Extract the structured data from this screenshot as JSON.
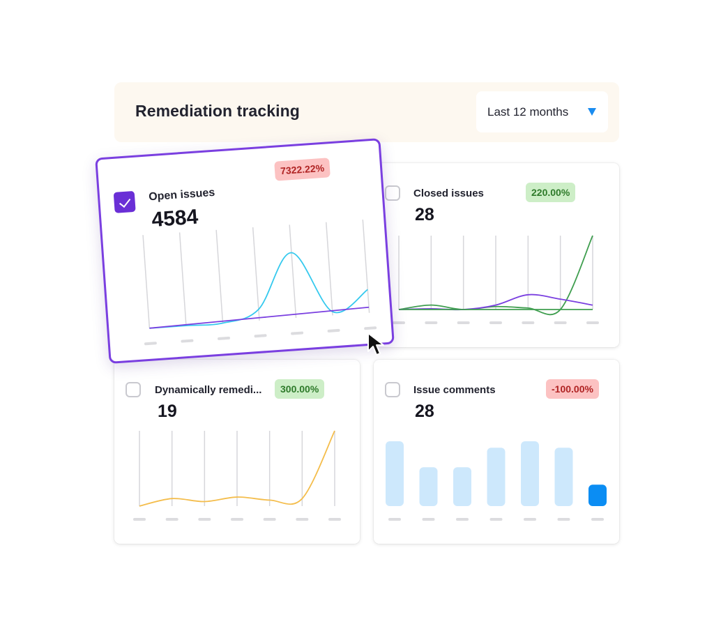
{
  "header": {
    "title": "Remediation tracking"
  },
  "range_select": {
    "label": "Last 12 months"
  },
  "colors": {
    "accent_purple": "#7a3fe0",
    "cyan_line": "#35c9ee",
    "green_line": "#3f9e4f",
    "yellow_line": "#f4bd4c",
    "bar_light": "#cde8fc",
    "bar_active": "#0b8df3",
    "badge_red_bg": "#fcc2c2",
    "badge_green_bg": "#cdeec7"
  },
  "cards": {
    "open_issues": {
      "title": "Open issues",
      "value": "4584",
      "badge": "7322.22%",
      "checked": true
    },
    "closed_issues": {
      "title": "Closed issues",
      "value": "28",
      "badge": "220.00%",
      "checked": false
    },
    "dynamically_remediated": {
      "title": "Dynamically remedi...",
      "value": "19",
      "badge": "300.00%",
      "checked": false
    },
    "issue_comments": {
      "title": "Issue comments",
      "value": "28",
      "badge": "-100.00%",
      "checked": false
    }
  },
  "chart_data": [
    {
      "type": "line",
      "x": [
        0,
        1,
        2,
        3,
        4,
        5,
        6
      ],
      "series": [
        {
          "values": [
            0,
            0,
            0,
            12,
            70,
            4,
            25
          ],
          "color": "#35c9ee"
        },
        {
          "values": [
            0,
            1,
            2,
            3,
            4,
            5,
            6
          ],
          "color": "#7a3fe0"
        }
      ],
      "ylim": [
        0,
        100
      ],
      "grid": true
    },
    {
      "type": "line",
      "x": [
        0,
        1,
        2,
        3,
        4,
        5,
        6
      ],
      "series": [
        {
          "values": [
            0,
            6,
            0,
            4,
            2,
            0,
            100
          ],
          "color": "#3f9e4f"
        },
        {
          "values": [
            0,
            1,
            0,
            6,
            20,
            14,
            6
          ],
          "color": "#7a3fe0"
        },
        {
          "values": [
            0,
            0,
            0,
            0,
            0,
            0,
            0
          ],
          "color": "#3f9e4f"
        }
      ],
      "ylim": [
        0,
        100
      ],
      "grid": true
    },
    {
      "type": "line",
      "x": [
        0,
        1,
        2,
        3,
        4,
        5,
        6
      ],
      "series": [
        {
          "values": [
            0,
            10,
            6,
            12,
            8,
            10,
            100
          ],
          "color": "#f4bd4c"
        }
      ],
      "ylim": [
        0,
        100
      ],
      "grid": true
    },
    {
      "type": "bar",
      "categories": [
        "1",
        "2",
        "3",
        "4",
        "5",
        "6",
        "7"
      ],
      "values": [
        100,
        60,
        60,
        90,
        100,
        90,
        33
      ],
      "highlight_index": 6,
      "ylim": [
        0,
        100
      ]
    }
  ]
}
